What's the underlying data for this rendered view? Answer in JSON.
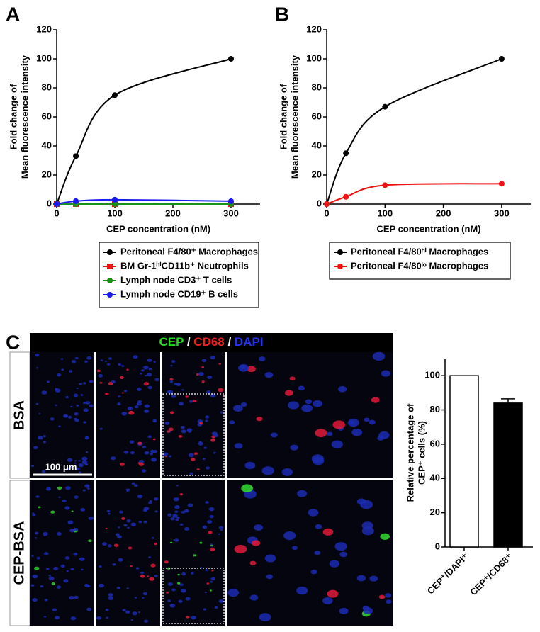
{
  "panels": [
    "A",
    "B",
    "C"
  ],
  "microscopy": {
    "title_parts": [
      {
        "text": "CEP",
        "color": "#22dd22"
      },
      {
        "text": " / ",
        "color": "#ffffff"
      },
      {
        "text": "CD68",
        "color": "#ee2222"
      },
      {
        "text": " / ",
        "color": "#ffffff"
      },
      {
        "text": "DAPI",
        "color": "#2233ee"
      }
    ],
    "rows": [
      "BSA",
      "CEP-BSA"
    ],
    "scale_bar": "100 μm"
  },
  "chart_data": [
    {
      "type": "line",
      "xlabel": "CEP concentration (nM)",
      "ylabel": [
        "Fold change of",
        "Mean fluorescence intensity"
      ],
      "x": [
        0,
        33,
        100,
        300
      ],
      "xlim": [
        0,
        350
      ],
      "xticks": [
        0,
        100,
        200,
        300
      ],
      "ylim": [
        0,
        120
      ],
      "yticks": [
        0,
        20,
        40,
        60,
        80,
        100,
        120
      ],
      "series": [
        {
          "name": "Peritoneal F4/80⁺ Macrophages",
          "color": "#000000",
          "marker": "circle",
          "values": [
            0,
            33,
            75,
            100
          ]
        },
        {
          "name": "BM Gr-1ʰⁱCD11b⁺ Neutrophils",
          "color": "#ee1111",
          "marker": "square",
          "values": [
            0,
            0,
            0,
            0
          ]
        },
        {
          "name": "Lymph node CD3⁺ T cells",
          "color": "#1a8f1a",
          "marker": "circle",
          "values": [
            0,
            0,
            0,
            0
          ]
        },
        {
          "name": "Lymph node CD19⁺ B cells",
          "color": "#1a1aee",
          "marker": "circle",
          "values": [
            0,
            2,
            3,
            2
          ]
        }
      ]
    },
    {
      "type": "line",
      "xlabel": "CEP concentration (nM)",
      "ylabel": [
        "Fold change of",
        "Mean fluorescence intensity"
      ],
      "x": [
        0,
        33,
        100,
        300
      ],
      "xlim": [
        0,
        350
      ],
      "xticks": [
        0,
        100,
        200,
        300
      ],
      "ylim": [
        0,
        120
      ],
      "yticks": [
        0,
        20,
        40,
        60,
        80,
        100,
        120
      ],
      "series": [
        {
          "name": "Peritoneal F4/80ʰⁱ Macrophages",
          "color": "#000000",
          "marker": "circle",
          "values": [
            0,
            35,
            67,
            100
          ]
        },
        {
          "name": "Peritoneal F4/80ˡᵒ Macrophages",
          "color": "#ee1111",
          "marker": "circle",
          "values": [
            0,
            5,
            13,
            14
          ]
        }
      ]
    },
    {
      "type": "bar",
      "ylabel": [
        "Relative percentage of",
        "CEP⁺ cells (%)"
      ],
      "categories": [
        "CEP⁺/DAPI⁺",
        "CEP⁺/CD68⁺"
      ],
      "values": [
        100,
        84
      ],
      "errors": [
        null,
        2.5
      ],
      "colors": [
        "#ffffff",
        "#000000"
      ],
      "ylim": [
        0,
        110
      ],
      "yticks": [
        0,
        20,
        40,
        60,
        80,
        100
      ]
    }
  ]
}
